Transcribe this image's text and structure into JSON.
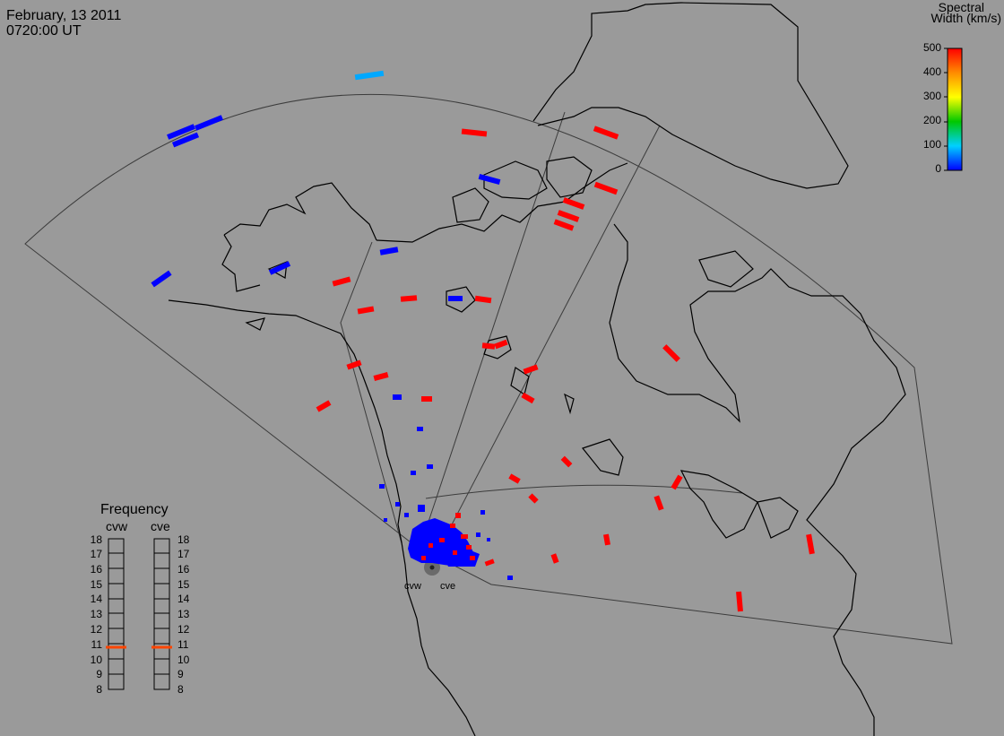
{
  "header": {
    "date": "February, 13 2011",
    "time": "0720:00 UT"
  },
  "colorbar": {
    "title_line1": "Spectral",
    "title_line2": "Width (km/s)",
    "ticks": [
      "500",
      "400",
      "300",
      "200",
      "100",
      "0"
    ],
    "gradient_colors": [
      "#ff0000",
      "#ff8c00",
      "#ffff00",
      "#00c800",
      "#00d0ff",
      "#0000ff"
    ]
  },
  "frequency_panel": {
    "title": "Frequency",
    "radars": [
      {
        "name": "cvw",
        "current_mhz": 10.8
      },
      {
        "name": "cve",
        "current_mhz": 10.8
      }
    ],
    "scale_labels": [
      "18",
      "17",
      "16",
      "15",
      "14",
      "13",
      "12",
      "11",
      "10",
      "9",
      "8"
    ],
    "marker_color": "#ff4500"
  },
  "radar_labels": [
    "cvw",
    "cve"
  ],
  "colors": {
    "background": "#9a9a9a",
    "coastline": "#000000",
    "grid": "#3c3c3c",
    "low_width": "#0000ff",
    "mid_width": "#00a8ff",
    "high_width": "#ff0000"
  }
}
